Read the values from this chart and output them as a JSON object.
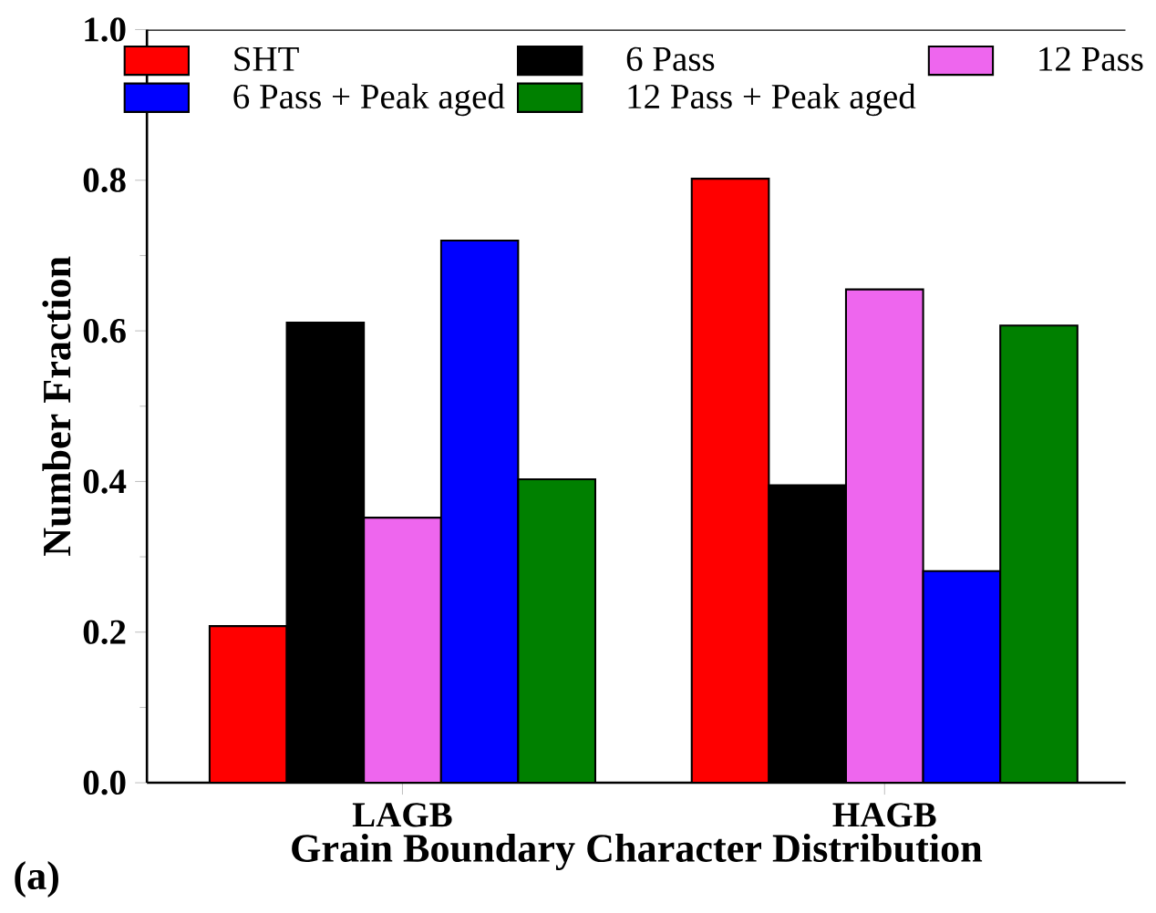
{
  "chart_data": {
    "type": "bar",
    "xlabel": "Grain Boundary Character Distribution",
    "ylabel": "Number Fraction",
    "categories": [
      "LAGB",
      "HAGB"
    ],
    "series": [
      {
        "name": "SHT",
        "color": "#ff0000",
        "values": [
          0.208,
          0.802
        ]
      },
      {
        "name": "6 Pass",
        "color": "#000000",
        "values": [
          0.611,
          0.395
        ]
      },
      {
        "name": "12 Pass",
        "color": "#ee66ee",
        "values": [
          0.352,
          0.655
        ]
      },
      {
        "name": "6 Pass + Peak aged",
        "color": "#0000ff",
        "values": [
          0.72,
          0.281
        ]
      },
      {
        "name": "12 Pass + Peak aged",
        "color": "#008000",
        "values": [
          0.403,
          0.607
        ]
      }
    ],
    "ylim": [
      0,
      1
    ],
    "yticks": [
      {
        "value": 0,
        "label": "0.0"
      },
      {
        "value": 0.2,
        "label": "0.2"
      },
      {
        "value": 0.4,
        "label": "0.4"
      },
      {
        "value": 0.6,
        "label": "0.6"
      },
      {
        "value": 0.8,
        "label": "0.8"
      },
      {
        "value": 1,
        "label": "1.0"
      }
    ],
    "legend": "top",
    "grid": false,
    "annotations": [
      "(a)"
    ]
  }
}
